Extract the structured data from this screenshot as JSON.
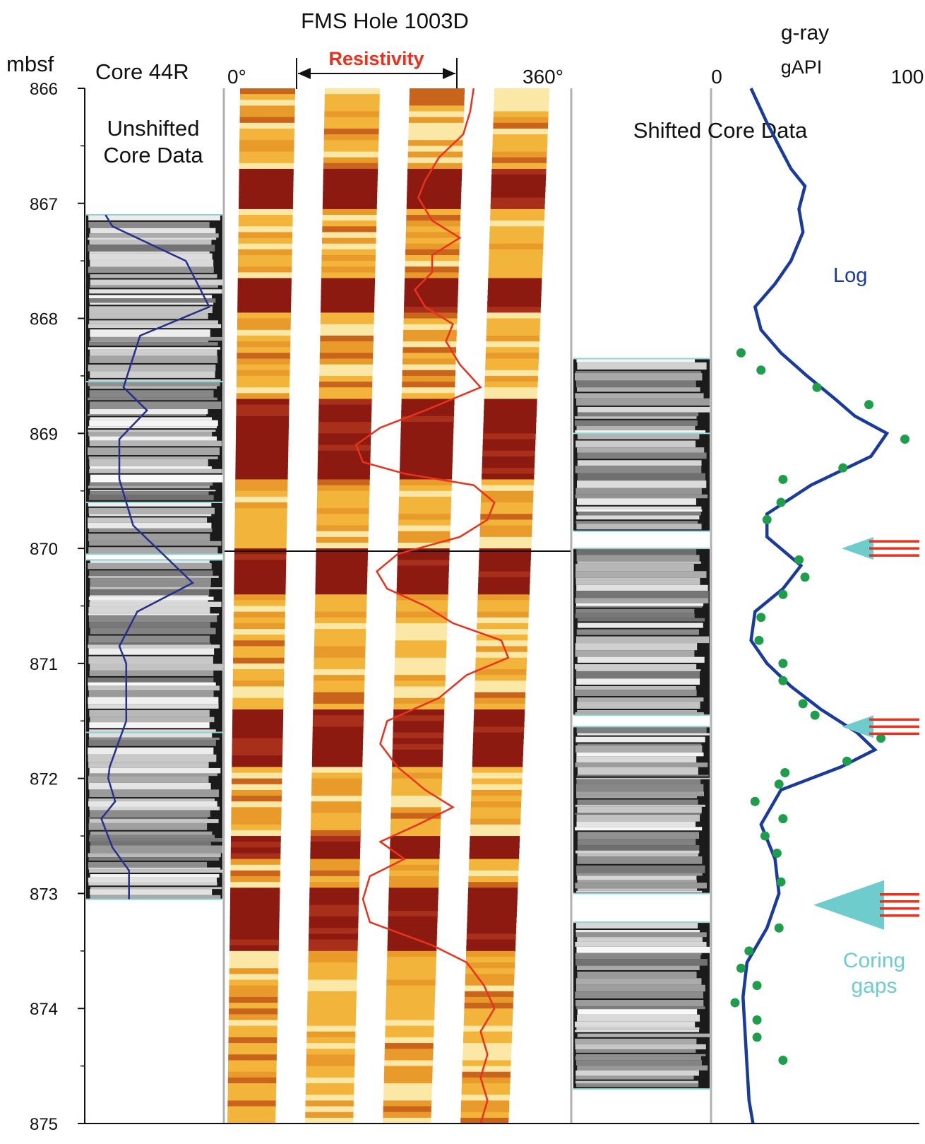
{
  "figure": {
    "title": "FMS Hole 1003D",
    "depth_unit": "mbsf",
    "core_header": "Core 44R",
    "unshifted_label_line1": "Unshifted",
    "unshifted_label_line2": "Core Data",
    "shifted_label": "Shifted Core Data",
    "azimuth_start": "0°",
    "azimuth_end": "360°",
    "resistivity_label": "Resistivity",
    "gray_title": "g-ray",
    "gray_unit": "gAPI",
    "gray_min_label": "0",
    "gray_max_label": "100",
    "log_label": "Log",
    "gaps_label_line1": "Coring",
    "gaps_label_line2": "gaps"
  },
  "colors": {
    "resistivity": "#e8321e",
    "log_curve": "#1a3a9c",
    "core_curve": "#27308a",
    "core_points": "#1e9e4a",
    "gap_arrow": "#6fcccc",
    "fms_dark": "#8c1a10",
    "fms_light": "#f2b43a"
  },
  "chart_data": {
    "type": "well-log",
    "depth_axis": {
      "label": "mbsf",
      "range": [
        866,
        875
      ],
      "ticks": [
        "866",
        "867",
        "868",
        "869",
        "870",
        "871",
        "872",
        "873",
        "874",
        "875"
      ]
    },
    "gray_axis": {
      "label": "g-ray gAPI",
      "range": [
        0,
        100
      ]
    },
    "series": [
      {
        "name": "Log",
        "depth": [
          866.0,
          866.3,
          866.5,
          866.7,
          866.85,
          867.05,
          867.25,
          867.5,
          867.7,
          867.9,
          868.1,
          868.3,
          868.5,
          868.7,
          868.85,
          869.0,
          869.2,
          869.45,
          869.7,
          869.9,
          870.15,
          870.35,
          870.55,
          870.8,
          871.0,
          871.2,
          871.4,
          871.6,
          871.75,
          871.9,
          872.1,
          872.4,
          872.7,
          873.0,
          873.3,
          873.6,
          873.9,
          874.2,
          874.5,
          874.8,
          875.0
        ],
        "value": [
          20,
          28,
          34,
          40,
          47,
          44,
          46,
          40,
          32,
          22,
          25,
          35,
          48,
          62,
          72,
          88,
          80,
          50,
          28,
          28,
          45,
          36,
          22,
          20,
          28,
          40,
          55,
          73,
          82,
          65,
          35,
          25,
          32,
          34,
          28,
          18,
          16,
          17,
          18,
          19,
          21
        ]
      },
      {
        "name": "Core 44R unshifted",
        "depth": [
          867.1,
          867.2,
          867.5,
          867.9,
          868.15,
          868.6,
          868.8,
          869.05,
          869.4,
          869.8,
          870.3,
          870.55,
          870.85,
          871.0,
          871.5,
          871.9,
          872.0,
          872.2,
          872.35,
          872.6,
          872.8,
          873.05
        ],
        "value": [
          15,
          20,
          73,
          90,
          40,
          28,
          45,
          25,
          25,
          35,
          78,
          38,
          25,
          30,
          30,
          18,
          17,
          22,
          12,
          20,
          32,
          32
        ]
      },
      {
        "name": "Core shifted",
        "depth": [
          868.3,
          868.45,
          868.6,
          868.75,
          869.05,
          869.3,
          869.4,
          869.6,
          869.75,
          870.1,
          870.25,
          870.4,
          870.6,
          870.8,
          871.0,
          871.15,
          871.35,
          871.45,
          871.65,
          871.85,
          871.95,
          872.05,
          872.2,
          872.35,
          872.5,
          872.65,
          872.9,
          873.3,
          873.5,
          873.65,
          873.8,
          873.95,
          874.1,
          874.25,
          874.45
        ],
        "value": [
          15,
          25,
          53,
          79,
          97,
          66,
          36,
          35,
          28,
          44,
          47,
          36,
          25,
          24,
          36,
          36,
          46,
          52,
          85,
          68,
          37,
          34,
          22,
          36,
          27,
          33,
          35,
          34,
          19,
          15,
          23,
          12,
          23,
          23,
          36
        ]
      },
      {
        "name": "Resistivity",
        "depth": [
          866.0,
          866.2,
          866.4,
          866.6,
          866.8,
          866.95,
          867.15,
          867.3,
          867.45,
          867.6,
          867.75,
          867.9,
          868.05,
          868.2,
          868.4,
          868.6,
          868.8,
          868.95,
          869.1,
          869.25,
          869.35,
          869.45,
          869.6,
          869.75,
          869.9,
          870.05,
          870.2,
          870.35,
          870.5,
          870.65,
          870.8,
          870.95,
          871.1,
          871.3,
          871.5,
          871.7,
          871.9,
          872.1,
          872.25,
          872.4,
          872.55,
          872.7,
          872.85,
          873.05,
          873.25,
          873.45,
          873.6,
          873.8,
          874.0,
          874.2,
          874.4,
          874.6,
          874.8,
          875.0
        ],
        "value": [
          0.72,
          0.71,
          0.69,
          0.62,
          0.58,
          0.56,
          0.6,
          0.68,
          0.6,
          0.6,
          0.55,
          0.58,
          0.66,
          0.64,
          0.68,
          0.74,
          0.58,
          0.45,
          0.38,
          0.4,
          0.52,
          0.72,
          0.78,
          0.76,
          0.68,
          0.5,
          0.44,
          0.47,
          0.58,
          0.66,
          0.8,
          0.82,
          0.7,
          0.62,
          0.47,
          0.45,
          0.5,
          0.58,
          0.66,
          0.56,
          0.45,
          0.52,
          0.42,
          0.4,
          0.42,
          0.6,
          0.7,
          0.75,
          0.78,
          0.74,
          0.76,
          0.74,
          0.76,
          0.74
        ]
      }
    ],
    "coring_gaps_depth": [
      870.0,
      871.55,
      873.1
    ],
    "core_sections_unshifted": [
      [
        867.1,
        868.55
      ],
      [
        868.55,
        869.6
      ],
      [
        869.6,
        870.05
      ],
      [
        870.1,
        871.6
      ],
      [
        871.6,
        873.05
      ]
    ],
    "core_sections_shifted": [
      [
        868.35,
        869.0
      ],
      [
        869.0,
        869.85
      ],
      [
        870.0,
        871.45
      ],
      [
        871.55,
        873.0
      ],
      [
        873.25,
        874.7
      ]
    ]
  }
}
